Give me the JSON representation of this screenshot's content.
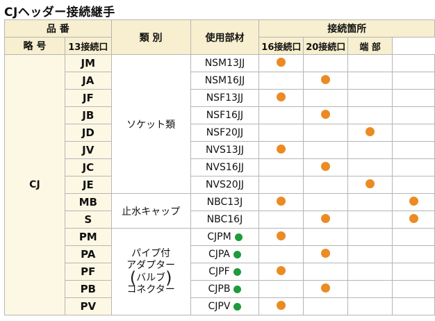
{
  "title": "CJヘッダー接続継手",
  "header": {
    "hinban": "品 番",
    "ryakugo": "略 号",
    "shubetsu": "類 別",
    "buzai": "使用部材",
    "setsuzoku": "接続箇所",
    "cols": [
      "13接続口",
      "16接続口",
      "20接続口",
      "端 部"
    ]
  },
  "product_group": "CJ",
  "categories": {
    "socket": "ソケット類",
    "cap": "止水キャップ",
    "valve_lines": [
      "パイプ付",
      "アダプター",
      "バルブ",
      "コネクター"
    ],
    "paren_left": "(",
    "paren_right": ")"
  },
  "rows": [
    {
      "code": "JM",
      "part": "NSM13JJ",
      "conn": [
        true,
        false,
        false,
        false
      ],
      "green": false
    },
    {
      "code": "JA",
      "part": "NSM16JJ",
      "conn": [
        false,
        true,
        false,
        false
      ],
      "green": false
    },
    {
      "code": "JF",
      "part": "NSF13JJ",
      "conn": [
        true,
        false,
        false,
        false
      ],
      "green": false
    },
    {
      "code": "JB",
      "part": "NSF16JJ",
      "conn": [
        false,
        true,
        false,
        false
      ],
      "green": false
    },
    {
      "code": "JD",
      "part": "NSF20JJ",
      "conn": [
        false,
        false,
        true,
        false
      ],
      "green": false
    },
    {
      "code": "JV",
      "part": "NVS13JJ",
      "conn": [
        true,
        false,
        false,
        false
      ],
      "green": false
    },
    {
      "code": "JC",
      "part": "NVS16JJ",
      "conn": [
        false,
        true,
        false,
        false
      ],
      "green": false
    },
    {
      "code": "JE",
      "part": "NVS20JJ",
      "conn": [
        false,
        false,
        true,
        false
      ],
      "green": false
    },
    {
      "code": "MB",
      "part": "NBC13J",
      "conn": [
        true,
        false,
        false,
        true
      ],
      "green": false
    },
    {
      "code": "S",
      "part": "NBC16J",
      "conn": [
        false,
        true,
        false,
        true
      ],
      "green": false
    },
    {
      "code": "PM",
      "part": "CJPM",
      "conn": [
        true,
        false,
        false,
        false
      ],
      "green": true
    },
    {
      "code": "PA",
      "part": "CJPA",
      "conn": [
        false,
        true,
        false,
        false
      ],
      "green": true
    },
    {
      "code": "PF",
      "part": "CJPF",
      "conn": [
        true,
        false,
        false,
        false
      ],
      "green": true
    },
    {
      "code": "PB",
      "part": "CJPB",
      "conn": [
        false,
        true,
        false,
        false
      ],
      "green": true
    },
    {
      "code": "PV",
      "part": "CJPV",
      "conn": [
        true,
        false,
        false,
        false
      ],
      "green": true
    }
  ],
  "colors": {
    "header_bg": "#f7efcf",
    "code_bg": "#fdf8e4",
    "orange_dot": "#ec8a24",
    "green_dot": "#1e9b3b"
  }
}
